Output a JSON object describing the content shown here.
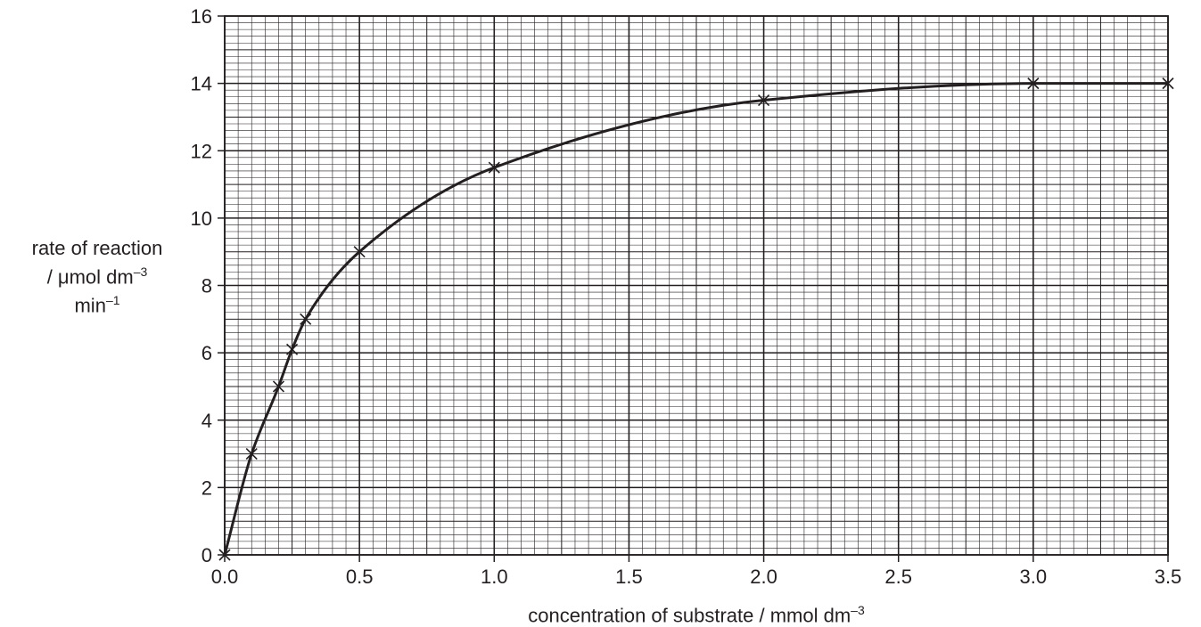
{
  "chart_data": {
    "type": "line",
    "title": "",
    "xlabel": {
      "text": "concentration of substrate / mmol dm",
      "sup": "–3"
    },
    "ylabel": {
      "line1": "rate of reaction",
      "line2_text": "/ μmol dm",
      "line2_sup": "–3",
      "line3_text": "min",
      "line3_sup": "–1"
    },
    "xlim": [
      0,
      3.5
    ],
    "ylim": [
      0,
      16
    ],
    "x_ticks": [
      "0.0",
      "0.5",
      "1.0",
      "1.5",
      "2.0",
      "2.5",
      "3.0",
      "3.5"
    ],
    "y_ticks": [
      "0",
      "2",
      "4",
      "6",
      "8",
      "10",
      "12",
      "14",
      "16"
    ],
    "grid": true,
    "legend": "none",
    "series": [
      {
        "points": [
          {
            "x": 0.0,
            "y": 0
          },
          {
            "x": 0.1,
            "y": 3
          },
          {
            "x": 0.2,
            "y": 5
          },
          {
            "x": 0.25,
            "y": 6.1
          },
          {
            "x": 0.3,
            "y": 7
          },
          {
            "x": 0.5,
            "y": 9
          },
          {
            "x": 1.0,
            "y": 11.5
          },
          {
            "x": 2.0,
            "y": 13.5
          },
          {
            "x": 3.0,
            "y": 14
          },
          {
            "x": 3.5,
            "y": 14
          }
        ],
        "marker": "cross",
        "color": "#231f20"
      }
    ],
    "colors": {
      "ink": "#231f20",
      "grid": "#231f20"
    }
  }
}
